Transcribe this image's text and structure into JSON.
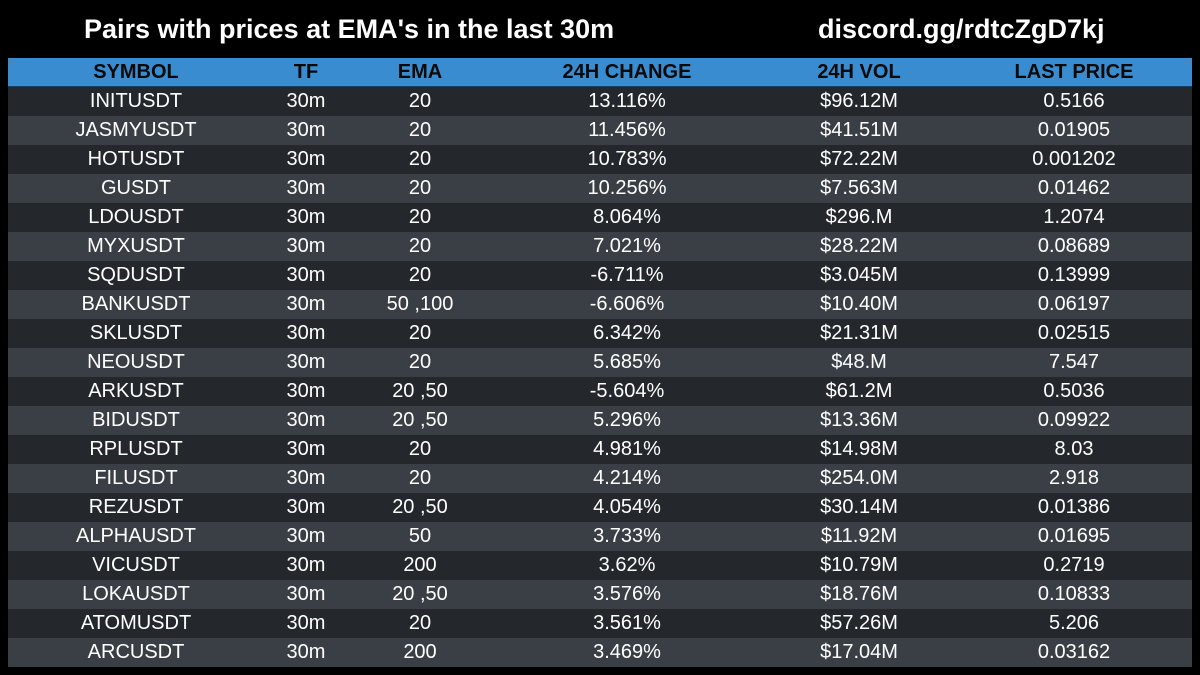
{
  "header": {
    "title": "Pairs with prices at EMA's in the last 30m",
    "invite": "discord.gg/rdtcZgD7kj"
  },
  "table": {
    "columns": [
      "SYMBOL",
      "TF",
      "EMA",
      "24H CHANGE",
      "24H VOL",
      "LAST PRICE"
    ],
    "rows": [
      [
        "INITUSDT",
        "30m",
        "20",
        "13.116%",
        "$96.12M",
        "0.5166"
      ],
      [
        "JASMYUSDT",
        "30m",
        "20",
        "11.456%",
        "$41.51M",
        "0.01905"
      ],
      [
        "HOTUSDT",
        "30m",
        "20",
        "10.783%",
        "$72.22M",
        "0.001202"
      ],
      [
        "GUSDT",
        "30m",
        "20",
        "10.256%",
        "$7.563M",
        "0.01462"
      ],
      [
        "LDOUSDT",
        "30m",
        "20",
        "8.064%",
        "$296.M",
        "1.2074"
      ],
      [
        "MYXUSDT",
        "30m",
        "20",
        "7.021%",
        "$28.22M",
        "0.08689"
      ],
      [
        "SQDUSDT",
        "30m",
        "20",
        "-6.711%",
        "$3.045M",
        "0.13999"
      ],
      [
        "BANKUSDT",
        "30m",
        "50 ,100",
        "-6.606%",
        "$10.40M",
        "0.06197"
      ],
      [
        "SKLUSDT",
        "30m",
        "20",
        "6.342%",
        "$21.31M",
        "0.02515"
      ],
      [
        "NEOUSDT",
        "30m",
        "20",
        "5.685%",
        "$48.M",
        "7.547"
      ],
      [
        "ARKUSDT",
        "30m",
        "20 ,50",
        "-5.604%",
        "$61.2M",
        "0.5036"
      ],
      [
        "BIDUSDT",
        "30m",
        "20 ,50",
        "5.296%",
        "$13.36M",
        "0.09922"
      ],
      [
        "RPLUSDT",
        "30m",
        "20",
        "4.981%",
        "$14.98M",
        "8.03"
      ],
      [
        "FILUSDT",
        "30m",
        "20",
        "4.214%",
        "$254.0M",
        "2.918"
      ],
      [
        "REZUSDT",
        "30m",
        "20 ,50",
        "4.054%",
        "$30.14M",
        "0.01386"
      ],
      [
        "ALPHAUSDT",
        "30m",
        "50",
        "3.733%",
        "$11.92M",
        "0.01695"
      ],
      [
        "VICUSDT",
        "30m",
        "200",
        "3.62%",
        "$10.79M",
        "0.2719"
      ],
      [
        "LOKAUSDT",
        "30m",
        "20 ,50",
        "3.576%",
        "$18.76M",
        "0.10833"
      ],
      [
        "ATOMUSDT",
        "30m",
        "20",
        "3.561%",
        "$57.26M",
        "5.206"
      ],
      [
        "ARCUSDT",
        "30m",
        "200",
        "3.469%",
        "$17.04M",
        "0.03162"
      ]
    ]
  },
  "colors": {
    "background": "#000000",
    "header_row": "#3a8cd0",
    "row_dark": "#24282c",
    "row_light": "#3a3f45",
    "text": "#ffffff"
  }
}
